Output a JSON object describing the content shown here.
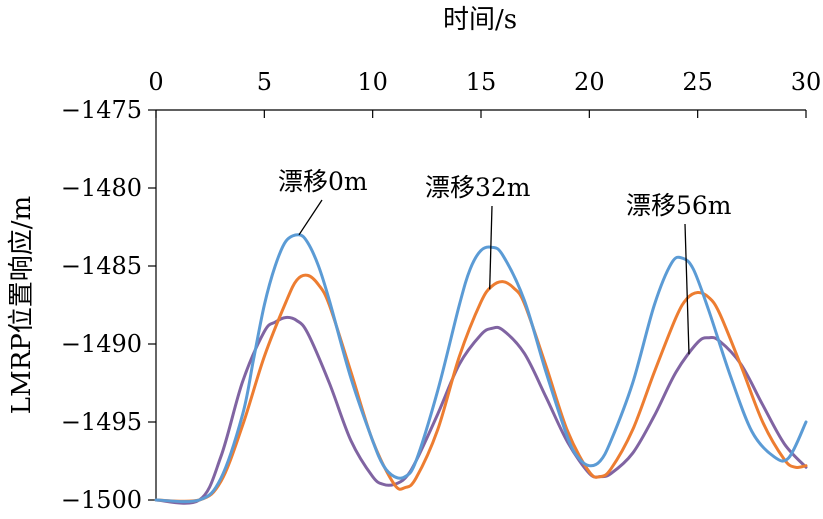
{
  "chart_data": {
    "type": "line",
    "title": "",
    "xlabel": "时间/s",
    "ylabel": "LMRP位置响应/m",
    "x_axis_position": "top",
    "xlim": [
      0,
      30
    ],
    "ylim": [
      -1500,
      -1475
    ],
    "y_reversed": true,
    "xticks": [
      0,
      5,
      10,
      15,
      20,
      25,
      30
    ],
    "yticks": [
      -1475,
      -1480,
      -1485,
      -1490,
      -1495,
      -1500
    ],
    "xtick_labels": [
      "0",
      "5",
      "10",
      "15",
      "20",
      "25",
      "30"
    ],
    "ytick_labels": [
      "−1475",
      "−1480",
      "−1485",
      "−1490",
      "−1495",
      "−1500"
    ],
    "grid": false,
    "legend": "none",
    "annotations": [
      {
        "text": "漂移0m",
        "series_index": 0,
        "x": 6.6
      },
      {
        "text": "漂移32m",
        "series_index": 1,
        "x": 15.4
      },
      {
        "text": "漂移56m",
        "series_index": 2,
        "x": 24.6
      }
    ],
    "series": [
      {
        "color": "#5b9bd5",
        "x": [
          0,
          2,
          3,
          4,
          4.5,
          5,
          5.5,
          6,
          6.6,
          7,
          7.5,
          8,
          9,
          10,
          10.5,
          11,
          11.5,
          12,
          13,
          14,
          14.5,
          15,
          15.5,
          16,
          17,
          18,
          19,
          19.5,
          20,
          20.5,
          21,
          22,
          23,
          23.8,
          24.3,
          24.8,
          25.5,
          26.5,
          27.5,
          28.5,
          29.2,
          30
        ],
        "y": [
          -1500,
          -1500,
          -1498.6,
          -1494.5,
          -1491,
          -1487.5,
          -1485,
          -1483.4,
          -1483.0,
          -1483.5,
          -1485,
          -1487.2,
          -1492.2,
          -1496.2,
          -1497.8,
          -1498.5,
          -1498.5,
          -1497.5,
          -1493,
          -1487.5,
          -1485.2,
          -1484,
          -1483.8,
          -1484.3,
          -1487.2,
          -1491.8,
          -1496,
          -1497.3,
          -1497.8,
          -1497.5,
          -1496.2,
          -1492.5,
          -1487.5,
          -1484.8,
          -1484.5,
          -1485.2,
          -1487.8,
          -1492,
          -1495.6,
          -1497.2,
          -1497.3,
          -1495
        ]
      },
      {
        "color": "#ed7d31",
        "x": [
          0,
          2,
          3,
          4,
          5,
          6,
          6.5,
          7,
          7.5,
          8,
          9,
          10,
          11,
          11.5,
          12,
          13,
          14,
          15,
          15.5,
          16,
          16.5,
          17,
          18,
          19,
          20,
          20.5,
          21,
          22,
          23,
          24,
          24.5,
          25,
          25.5,
          26,
          27,
          28,
          29,
          29.5,
          30
        ],
        "y": [
          -1500,
          -1500,
          -1498.8,
          -1495.2,
          -1490.8,
          -1487.3,
          -1485.9,
          -1485.6,
          -1486.2,
          -1487.5,
          -1491.8,
          -1496.2,
          -1499,
          -1499.2,
          -1498.6,
          -1495.5,
          -1490.8,
          -1487.3,
          -1486.3,
          -1486,
          -1486.4,
          -1487.4,
          -1491.4,
          -1495.6,
          -1498.2,
          -1498.5,
          -1498,
          -1495.5,
          -1491.8,
          -1488.3,
          -1487.1,
          -1486.7,
          -1487,
          -1488,
          -1491.4,
          -1495,
          -1497.4,
          -1497.9,
          -1497.8
        ]
      },
      {
        "color": "#8064a2",
        "x": [
          0,
          2,
          3,
          4,
          5,
          5.5,
          6,
          6.5,
          7,
          8,
          9,
          10,
          10.5,
          11,
          11.5,
          12,
          13,
          14,
          15,
          15.5,
          16,
          17,
          18,
          19,
          20,
          20.5,
          21,
          22,
          23,
          24,
          25,
          25.5,
          26,
          27,
          28,
          29,
          30
        ],
        "y": [
          -1500,
          -1500,
          -1497.2,
          -1492.4,
          -1489.2,
          -1488.6,
          -1488.3,
          -1488.5,
          -1489.3,
          -1492.5,
          -1496.2,
          -1498.5,
          -1499,
          -1499,
          -1498.6,
          -1497.5,
          -1494.5,
          -1491.3,
          -1489.4,
          -1489,
          -1489.1,
          -1490.6,
          -1493.4,
          -1496.3,
          -1498.3,
          -1498.5,
          -1498.3,
          -1497,
          -1494.6,
          -1491.8,
          -1489.9,
          -1489.6,
          -1489.8,
          -1491.3,
          -1493.9,
          -1496.4,
          -1497.9
        ]
      }
    ]
  }
}
